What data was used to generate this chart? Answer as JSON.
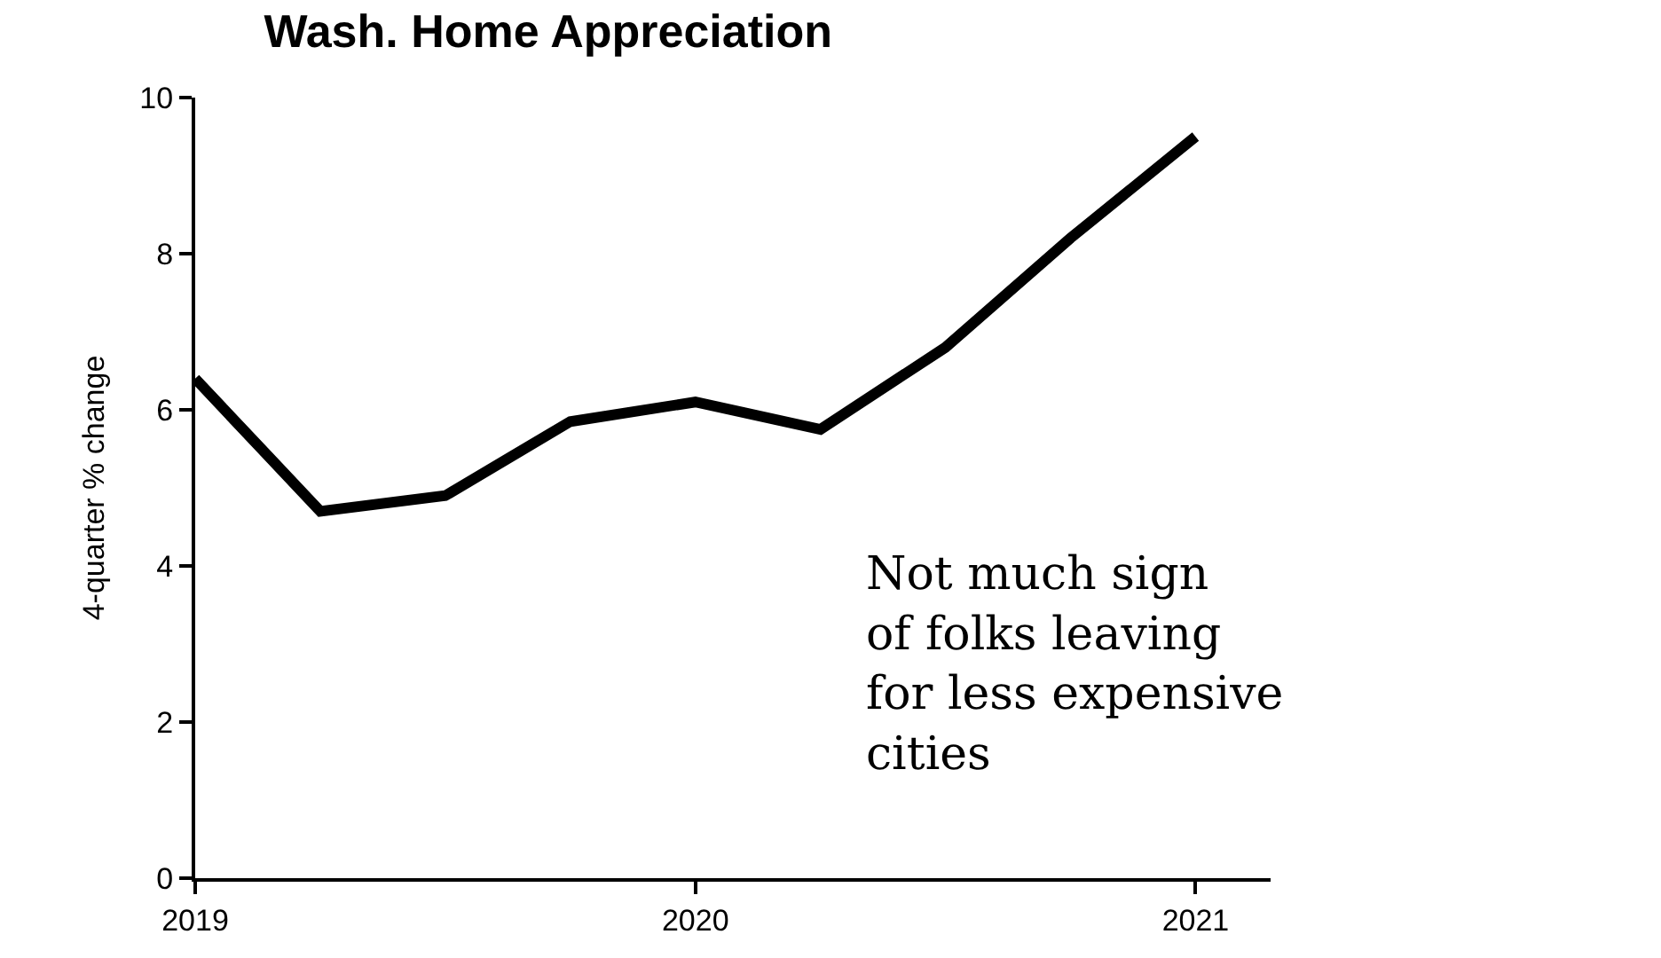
{
  "chart_data": {
    "type": "line",
    "title": "Wash. Home Appreciation",
    "ylabel": "4-quarter % change",
    "x": [
      2019,
      2019.25,
      2019.5,
      2019.75,
      2020,
      2020.25,
      2020.5,
      2020.75,
      2021
    ],
    "series": [
      {
        "color": "#000000",
        "values": [
          6.4,
          4.7,
          4.9,
          5.85,
          6.1,
          5.75,
          6.8,
          8.2,
          9.5
        ]
      }
    ],
    "xlim": [
      2019,
      2021.15
    ],
    "xticks": [
      2019,
      2020,
      2021
    ],
    "ylim": [
      0,
      10
    ],
    "yticks": [
      0,
      2,
      4,
      6,
      8,
      10
    ],
    "legend": false,
    "marker": "none",
    "line_style": "solid",
    "annotations": [
      "Not much sign of folks leaving for less expensive cities"
    ]
  }
}
